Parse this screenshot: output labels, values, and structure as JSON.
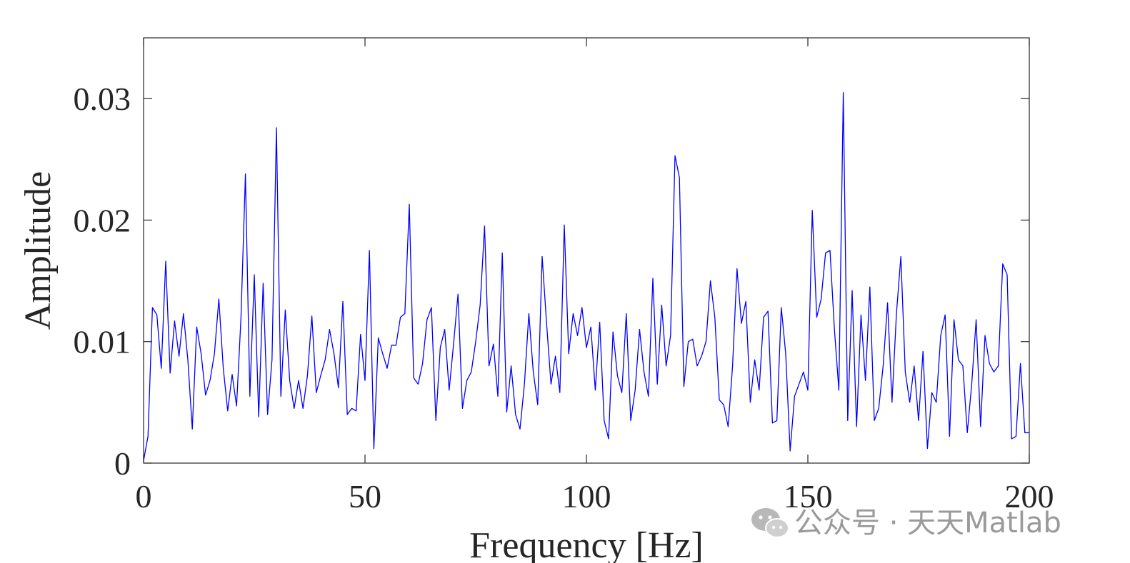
{
  "chart_data": {
    "type": "line",
    "xlabel": "Frequency [Hz]",
    "ylabel": "Amplitude",
    "xlim": [
      0,
      200
    ],
    "ylim": [
      0,
      0.035
    ],
    "xticks": [
      0,
      50,
      100,
      150,
      200
    ],
    "xtick_labels": [
      "0",
      "50",
      "100",
      "150",
      "200"
    ],
    "yticks": [
      0,
      0.01,
      0.02,
      0.03
    ],
    "ytick_labels": [
      "0",
      "0.01",
      "0.02",
      "0.03"
    ],
    "grid": false,
    "box": true,
    "series": [
      {
        "color": "#0000ff",
        "x_start": 0,
        "x_step": 1,
        "values": [
          0.0002,
          0.0022,
          0.0128,
          0.0122,
          0.0078,
          0.0166,
          0.0074,
          0.0117,
          0.0088,
          0.0123,
          0.0085,
          0.0028,
          0.0112,
          0.009,
          0.0056,
          0.0068,
          0.009,
          0.0135,
          0.0078,
          0.0043,
          0.0073,
          0.0047,
          0.012,
          0.0238,
          0.0055,
          0.0155,
          0.0038,
          0.0148,
          0.004,
          0.0085,
          0.0276,
          0.0055,
          0.0126,
          0.0068,
          0.0045,
          0.0068,
          0.0045,
          0.0072,
          0.0121,
          0.0058,
          0.0072,
          0.0085,
          0.011,
          0.009,
          0.0062,
          0.0133,
          0.004,
          0.0045,
          0.0043,
          0.0106,
          0.0068,
          0.0175,
          0.0012,
          0.0103,
          0.009,
          0.0078,
          0.0097,
          0.0097,
          0.012,
          0.0123,
          0.0213,
          0.007,
          0.0065,
          0.0082,
          0.0118,
          0.0128,
          0.0035,
          0.0095,
          0.011,
          0.006,
          0.0098,
          0.0139,
          0.0045,
          0.0068,
          0.0075,
          0.01,
          0.013,
          0.0195,
          0.008,
          0.0098,
          0.0055,
          0.0173,
          0.0042,
          0.008,
          0.004,
          0.0028,
          0.0065,
          0.0123,
          0.0075,
          0.0048,
          0.017,
          0.0115,
          0.0065,
          0.0088,
          0.0058,
          0.0196,
          0.009,
          0.0123,
          0.0105,
          0.0128,
          0.0095,
          0.0112,
          0.006,
          0.0116,
          0.0035,
          0.002,
          0.0108,
          0.0072,
          0.0058,
          0.0123,
          0.0035,
          0.006,
          0.011,
          0.0075,
          0.0055,
          0.0152,
          0.0065,
          0.013,
          0.008,
          0.0105,
          0.0253,
          0.0235,
          0.0063,
          0.01,
          0.0102,
          0.008,
          0.0088,
          0.01,
          0.015,
          0.012,
          0.0052,
          0.0048,
          0.003,
          0.008,
          0.016,
          0.0115,
          0.0133,
          0.005,
          0.0085,
          0.006,
          0.012,
          0.0125,
          0.0033,
          0.0035,
          0.0128,
          0.009,
          0.001,
          0.0055,
          0.0065,
          0.0075,
          0.006,
          0.0208,
          0.012,
          0.0135,
          0.0173,
          0.0175,
          0.011,
          0.006,
          0.0305,
          0.0035,
          0.0142,
          0.003,
          0.0122,
          0.0068,
          0.0145,
          0.0035,
          0.0045,
          0.008,
          0.0132,
          0.005,
          0.0123,
          0.017,
          0.0075,
          0.005,
          0.008,
          0.0035,
          0.0092,
          0.0012,
          0.0058,
          0.005,
          0.0105,
          0.0122,
          0.0022,
          0.0118,
          0.0085,
          0.008,
          0.0025,
          0.0065,
          0.0118,
          0.003,
          0.0105,
          0.0082,
          0.0075,
          0.008,
          0.0164,
          0.0155,
          0.002,
          0.0022,
          0.0082,
          0.0025,
          0.0025
        ]
      }
    ]
  },
  "watermark": {
    "icon": "wechat-icon",
    "text": "公众号 · 天天Matlab"
  }
}
